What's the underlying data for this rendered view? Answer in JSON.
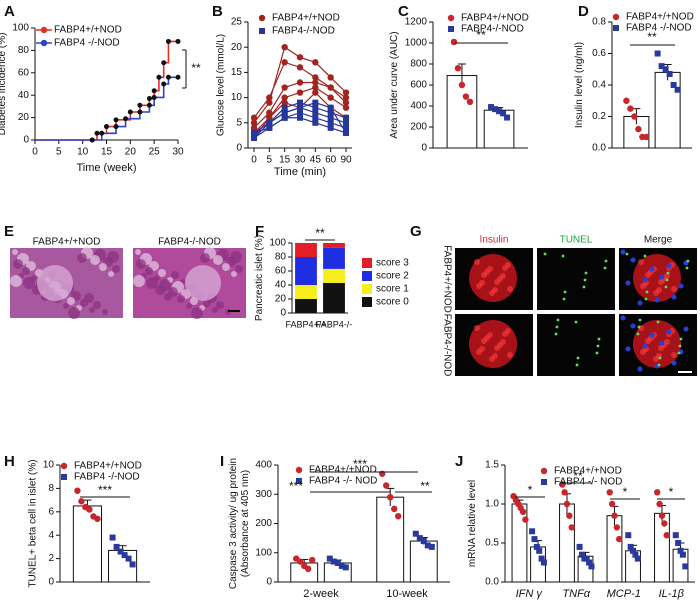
{
  "chart_data": [
    {
      "type": "step",
      "panel": "A",
      "ylabel": "Diabetes incidence (%)",
      "xlabel": "Time (week)",
      "xlim": [
        0,
        30
      ],
      "xticks": [
        0,
        5,
        10,
        15,
        20,
        25,
        30
      ],
      "ylim": [
        0,
        100
      ],
      "yticks": [
        0,
        20,
        40,
        60,
        80,
        100
      ],
      "annotations": [
        "**"
      ],
      "series": [
        {
          "name": "FABP4+/+NOD",
          "color": "#e0302a",
          "marker": "circle",
          "x": [
            0,
            12,
            13,
            15,
            17,
            20,
            22,
            24,
            25,
            26,
            27,
            28,
            30
          ],
          "values": [
            0,
            0,
            6,
            12,
            18,
            25,
            31,
            37,
            44,
            56,
            69,
            88,
            88
          ]
        },
        {
          "name": "FABP4 -/-NOD",
          "color": "#2d43c8",
          "marker": "circle",
          "x": [
            0,
            12,
            14,
            17,
            19,
            22,
            24,
            25,
            27,
            28,
            30
          ],
          "values": [
            0,
            0,
            6,
            12,
            19,
            25,
            31,
            38,
            50,
            56,
            56
          ]
        }
      ]
    },
    {
      "type": "line",
      "panel": "B",
      "ylabel": "Glucose level (mmol/L)",
      "xlabel": "Time (min)",
      "categories": [
        "0",
        "5",
        "15",
        "30",
        "45",
        "60",
        "90"
      ],
      "ylim": [
        0,
        25
      ],
      "yticks": [
        0,
        5,
        10,
        15,
        20,
        25
      ],
      "series": [
        {
          "name": "FABP4+/+NOD",
          "color": "#a3231f",
          "marker": "circle",
          "values": [
            5,
            9,
            20,
            18,
            17,
            14,
            11
          ]
        },
        {
          "color": "#a3231f",
          "marker": "circle",
          "values": [
            6,
            10,
            17,
            16,
            14,
            12,
            10
          ]
        },
        {
          "color": "#a3231f",
          "marker": "circle",
          "values": [
            4,
            7,
            12,
            13,
            13,
            12,
            9
          ]
        },
        {
          "color": "#a3231f",
          "marker": "circle",
          "values": [
            3,
            6,
            10,
            11,
            12,
            10,
            8
          ]
        },
        {
          "color": "#a3231f",
          "marker": "circle",
          "values": [
            2,
            6,
            9,
            8,
            11,
            8,
            6
          ]
        },
        {
          "name": "FABP4-/-NOD",
          "color": "#27369a",
          "marker": "square",
          "values": [
            3,
            5,
            8,
            9,
            8,
            7,
            6
          ]
        },
        {
          "color": "#27369a",
          "marker": "square",
          "values": [
            2,
            5,
            7,
            8,
            7,
            6,
            5
          ]
        },
        {
          "color": "#27369a",
          "marker": "square",
          "values": [
            3,
            4,
            6,
            7,
            6,
            5,
            4
          ]
        },
        {
          "color": "#27369a",
          "marker": "square",
          "values": [
            2,
            4,
            6,
            6,
            5,
            4,
            3
          ]
        },
        {
          "color": "#27369a",
          "marker": "square",
          "values": [
            3,
            5,
            7,
            8,
            9,
            8,
            3
          ]
        }
      ]
    },
    {
      "type": "bar",
      "panel": "C",
      "ylabel": "Area under curve (AUC)",
      "ylim": [
        0,
        1200
      ],
      "yticks": [
        0,
        200,
        400,
        600,
        800,
        1000,
        1200
      ],
      "annotations": [
        "**"
      ],
      "series": [
        {
          "name": "FABP4+/+NOD",
          "color": "#c8262b",
          "marker": "circle",
          "values": [
            690
          ],
          "errors": [
            110
          ],
          "points": [
            [
              1010,
              760,
              600,
              490,
              440
            ]
          ]
        },
        {
          "name": "FABP4-/-NOD",
          "color": "#2a3a9c",
          "marker": "square",
          "values": [
            360
          ],
          "errors": [
            25
          ],
          "points": [
            [
              390,
              370,
              350,
              330,
              290
            ]
          ]
        }
      ]
    },
    {
      "type": "bar",
      "panel": "D",
      "ylabel": "Insulin level (ng/ml)",
      "ylim": [
        0,
        0.8
      ],
      "yticks": [
        {
          "value": 0,
          "label": "0.0"
        },
        0.2,
        0.4,
        0.6,
        0.8
      ],
      "annotations": [
        "**"
      ],
      "series": [
        {
          "name": "FABP4+/+NOD",
          "color": "#c8262b",
          "marker": "circle",
          "values": [
            0.2
          ],
          "errors": [
            0.05
          ],
          "points": [
            [
              0.3,
              0.25,
              0.2,
              0.12,
              0.07,
              0.07
            ]
          ]
        },
        {
          "name": "FABP4 -/-NOD",
          "color": "#2a3a9c",
          "marker": "square",
          "values": [
            0.48
          ],
          "errors": [
            0.05
          ],
          "points": [
            [
              0.6,
              0.52,
              0.5,
              0.47,
              0.4,
              0.37
            ]
          ]
        }
      ]
    },
    {
      "type": "image",
      "panel": "E",
      "labels": [
        "FABP4+/+NOD",
        "FABP4-/-NOD"
      ]
    },
    {
      "type": "stacked_bar",
      "panel": "F",
      "ylabel": "Pancreatic islet (%)",
      "categories": [
        "FABP4+/+",
        "FABP4-/-"
      ],
      "ylim": [
        0,
        100
      ],
      "yticks": [
        0,
        20,
        40,
        60,
        80,
        100
      ],
      "annotations": [
        "**"
      ],
      "series": [
        {
          "name": "score 0",
          "color": "#111111",
          "values": [
            20,
            43
          ]
        },
        {
          "name": "score 1",
          "color": "#f5ee1c",
          "values": [
            20,
            20
          ]
        },
        {
          "name": "score 2",
          "color": "#1f2ee0",
          "values": [
            40,
            30
          ]
        },
        {
          "name": "score 3",
          "color": "#e21f26",
          "values": [
            20,
            7
          ]
        }
      ]
    },
    {
      "type": "image",
      "panel": "G",
      "columns": [
        "Insulin",
        "TUNEL",
        "Merge"
      ],
      "rows": [
        "FABP4+/+NOD",
        "FABP4-/-NOD"
      ]
    },
    {
      "type": "bar",
      "panel": "H",
      "ylabel": "TUNEL+ beta cell in islet (%)",
      "ylim": [
        0,
        10
      ],
      "yticks": [
        0,
        2,
        4,
        6,
        8,
        10
      ],
      "annotations": [
        "***"
      ],
      "series": [
        {
          "name": "FABP4+/+NOD",
          "color": "#c8262b",
          "marker": "circle",
          "values": [
            6.5
          ],
          "errors": [
            0.5
          ],
          "points": [
            [
              7.8,
              6.9,
              6.4,
              6.2,
              5.6,
              5.4
            ]
          ]
        },
        {
          "name": "FABP4 -/-NOD",
          "color": "#2a3a9c",
          "marker": "square",
          "values": [
            2.7
          ],
          "errors": [
            0.4
          ],
          "points": [
            [
              3.8,
              3.0,
              2.6,
              2.3,
              2.0,
              1.5
            ]
          ]
        }
      ]
    },
    {
      "type": "bar",
      "panel": "I",
      "ylabel": [
        "Caspase 3 activity/ ug protein",
        "(Absorbance at 405 nm)"
      ],
      "categories": [
        "2-week",
        "10-week"
      ],
      "ylim": [
        0,
        400
      ],
      "yticks": [
        0,
        100,
        200,
        300,
        400
      ],
      "annotations": [
        "***",
        "***",
        "**"
      ],
      "series": [
        {
          "name": "FABP4+/+NOD",
          "color": "#c8262b",
          "marker": "circle",
          "values": [
            65,
            290
          ],
          "errors": [
            12,
            30
          ],
          "points": [
            [
              80,
              70,
              55,
              45,
              75
            ],
            [
              370,
              330,
              290,
              250,
              225
            ]
          ]
        },
        {
          "name": "FABP4 -/- NOD",
          "color": "#2a3a9c",
          "marker": "square",
          "values": [
            65,
            140
          ],
          "errors": [
            10,
            12
          ],
          "points": [
            [
              80,
              70,
              65,
              55,
              50
            ],
            [
              165,
              150,
              140,
              125,
              120
            ]
          ]
        }
      ]
    },
    {
      "type": "bar",
      "panel": "J",
      "ylabel": "mRNA relative level",
      "categories": [
        "IFN γ",
        "TNFα",
        "MCP-1",
        "IL-1β"
      ],
      "ylim": [
        0,
        1.5
      ],
      "yticks": [
        {
          "value": 0,
          "label": "0.0"
        },
        0.5,
        {
          "value": 1,
          "label": "1.0"
        },
        1.5
      ],
      "annotations": [
        "*",
        "**",
        "*",
        "*"
      ],
      "series": [
        {
          "name": "FABP4+/+NOD",
          "color": "#c8262b",
          "marker": "circle",
          "values": [
            1.0,
            1.0,
            0.85,
            0.88
          ],
          "errors": [
            0.05,
            0.13,
            0.12,
            0.1
          ],
          "points": [
            [
              1.1,
              1.05,
              1.0,
              0.95,
              0.9,
              0.8
            ],
            [
              1.25,
              1.15,
              1.0,
              0.85,
              0.7
            ],
            [
              1.15,
              1.0,
              0.85,
              0.7,
              0.55
            ],
            [
              1.15,
              1.0,
              0.85,
              0.75,
              0.6
            ]
          ]
        },
        {
          "name": "FABP4 -/- NOD",
          "color": "#2a3a9c",
          "marker": "square",
          "values": [
            0.45,
            0.33,
            0.4,
            0.42
          ],
          "errors": [
            0.08,
            0.05,
            0.07,
            0.08
          ],
          "points": [
            [
              0.65,
              0.55,
              0.45,
              0.4,
              0.3,
              0.25
            ],
            [
              0.45,
              0.35,
              0.3,
              0.3,
              0.25,
              0.2
            ],
            [
              0.6,
              0.45,
              0.4,
              0.35,
              0.3
            ],
            [
              0.6,
              0.5,
              0.4,
              0.35,
              0.2
            ]
          ]
        }
      ]
    }
  ]
}
